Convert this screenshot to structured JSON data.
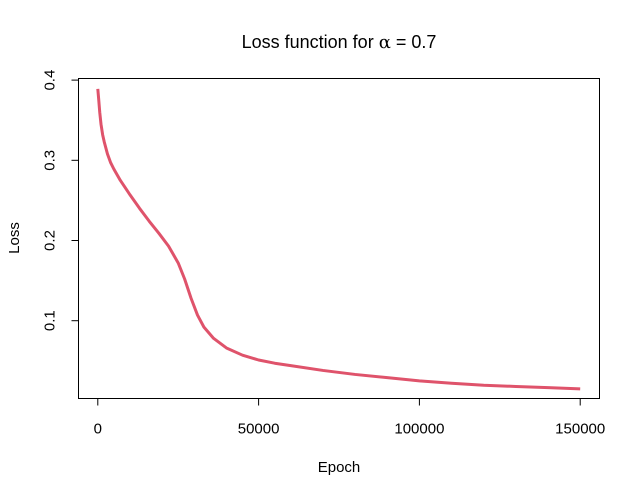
{
  "chart_data": {
    "type": "line",
    "title": {
      "prefix": "Loss function for ",
      "symbol": "α",
      "operator": " = ",
      "value": "0.7"
    },
    "xlabel": "Epoch",
    "ylabel": "Loss",
    "xlim": [
      -6000,
      156000
    ],
    "ylim": [
      0.003,
      0.402
    ],
    "x_ticks": [
      0,
      50000,
      100000,
      150000
    ],
    "x_tick_labels": [
      "0",
      "50000",
      "100000",
      "150000"
    ],
    "y_ticks": [
      0.1,
      0.2,
      0.3,
      0.4
    ],
    "y_tick_labels": [
      "0.1",
      "0.2",
      "0.3",
      "0.4"
    ],
    "grid": false,
    "legend": "none",
    "series": [
      {
        "color": "#DF536B",
        "x": [
          0,
          300,
          600,
          1000,
          1500,
          2000,
          3000,
          4000,
          5000,
          7000,
          10000,
          13000,
          16000,
          19000,
          22000,
          25000,
          27000,
          29000,
          31000,
          33000,
          36000,
          40000,
          45000,
          50000,
          55000,
          60000,
          70000,
          80000,
          90000,
          100000,
          110000,
          120000,
          130000,
          140000,
          150000
        ],
        "y": [
          0.389,
          0.375,
          0.36,
          0.345,
          0.332,
          0.323,
          0.308,
          0.297,
          0.289,
          0.275,
          0.257,
          0.24,
          0.224,
          0.209,
          0.193,
          0.172,
          0.152,
          0.128,
          0.107,
          0.092,
          0.078,
          0.066,
          0.057,
          0.051,
          0.047,
          0.044,
          0.038,
          0.033,
          0.029,
          0.025,
          0.022,
          0.0195,
          0.018,
          0.0165,
          0.015
        ]
      }
    ]
  }
}
